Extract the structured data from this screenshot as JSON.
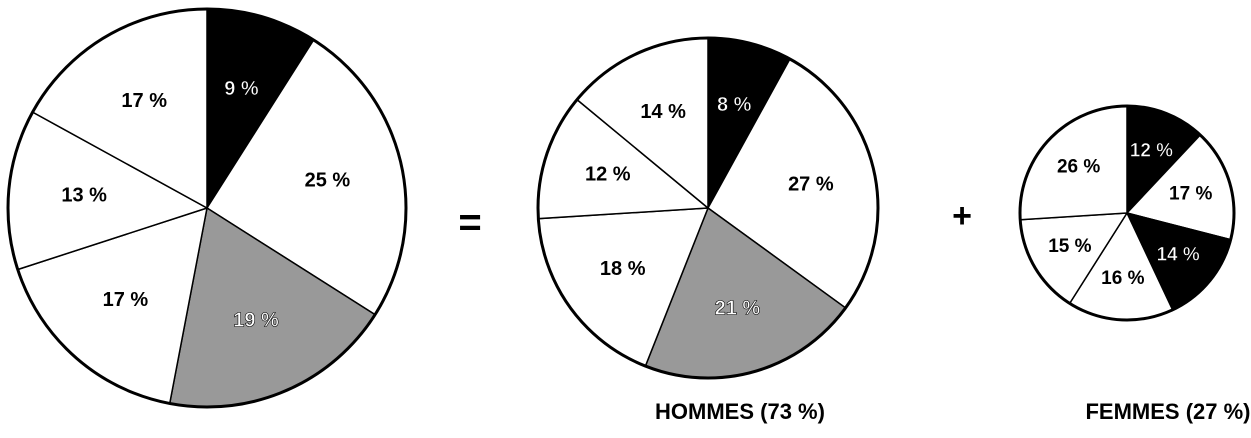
{
  "chart_data": [
    {
      "type": "pie",
      "values": [
        9,
        25,
        19,
        17,
        13,
        17
      ],
      "value_labels": [
        "9 %",
        "25 %",
        "19 %",
        "17 %",
        "13 %",
        "17 %"
      ],
      "colors": [
        "#000000",
        "#ffffff",
        "#999999",
        "#ffffff",
        "#ffffff",
        "#ffffff"
      ]
    },
    {
      "type": "pie",
      "title": "HOMMES (73 %)",
      "values": [
        8,
        27,
        21,
        18,
        12,
        14
      ],
      "value_labels": [
        "8 %",
        "27 %",
        "21 %",
        "18 %",
        "12 %",
        "14 %"
      ],
      "colors": [
        "#000000",
        "#ffffff",
        "#999999",
        "#ffffff",
        "#ffffff",
        "#ffffff"
      ]
    },
    {
      "type": "pie",
      "title": "FEMMES (27 %)",
      "values": [
        12,
        17,
        14,
        16,
        15,
        26
      ],
      "value_labels": [
        "12 %",
        "17 %",
        "14 %",
        "16 %",
        "15 %",
        "26 %"
      ],
      "colors": [
        "#000000",
        "#ffffff",
        "#000000",
        "#ffffff",
        "#ffffff",
        "#ffffff"
      ]
    }
  ],
  "symbols": [
    "=",
    "+"
  ]
}
